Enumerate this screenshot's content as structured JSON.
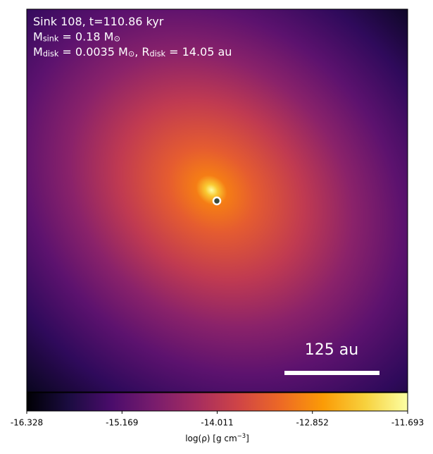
{
  "chart_data": {
    "type": "image",
    "cmap": "inferno",
    "annotations": [
      [
        {
          "t": "Sink 108, t=110.86 kyr"
        }
      ],
      [
        {
          "t": "M"
        },
        {
          "t": "sink",
          "sub": true
        },
        {
          "t": " = 0.18 "
        },
        {
          "t": "M"
        },
        {
          "t": "⊙",
          "sub": true
        }
      ],
      [
        {
          "t": "M"
        },
        {
          "t": "disk",
          "sub": true
        },
        {
          "t": " = 0.0035 "
        },
        {
          "t": "M"
        },
        {
          "t": "⊙",
          "sub": true
        },
        {
          "t": ", R"
        },
        {
          "t": "disk",
          "sub": true
        },
        {
          "t": " = 14.05 au"
        }
      ]
    ],
    "scalebar_label": "125 au",
    "colorbar": {
      "xlim": [
        -16.328,
        -11.693
      ],
      "xticks": [
        -16.328,
        -15.169,
        -14.011,
        -12.852,
        -11.693
      ],
      "label": [
        {
          "t": "log(ρ) [g cm"
        },
        {
          "t": "−3",
          "sup": true
        },
        {
          "t": "]"
        }
      ]
    }
  }
}
